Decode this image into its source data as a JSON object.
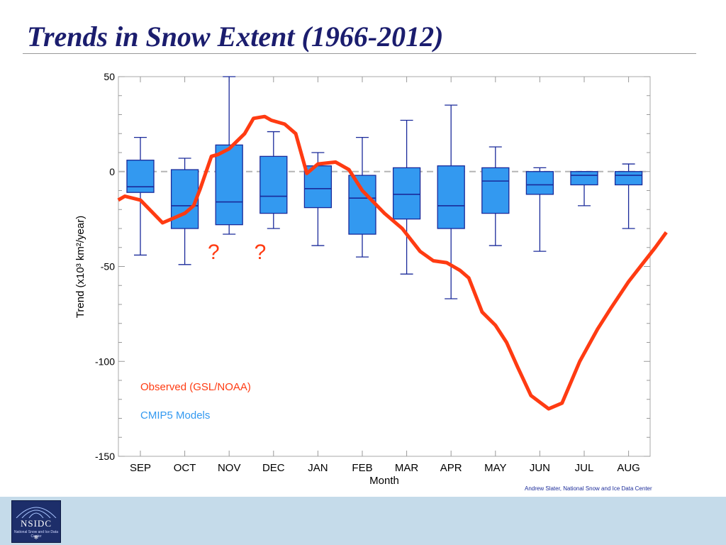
{
  "slide": {
    "title": "Trends in Snow Extent (1966-2012)",
    "credit": "Andrew Slater, National Snow and Ice Data Center",
    "logo_text": "NSIDC",
    "logo_subtext": "National Snow and Ice Data Center"
  },
  "chart_data": {
    "type": "box-and-line",
    "xlabel": "Month",
    "ylabel": "Trend (x10³ km²/year)",
    "ylim": [
      -150,
      50
    ],
    "yticks": [
      50,
      0,
      -50,
      -100,
      -150
    ],
    "categories": [
      "SEP",
      "OCT",
      "NOV",
      "DEC",
      "JAN",
      "FEB",
      "MAR",
      "APR",
      "MAY",
      "JUN",
      "JUL",
      "AUG"
    ],
    "reference_line": 0,
    "boxes": {
      "name": "CMIP5 Models",
      "color": "#3399f0",
      "data": [
        {
          "min": -44,
          "q1": -11,
          "median": -8,
          "q3": 6,
          "max": 18
        },
        {
          "min": -49,
          "q1": -30,
          "median": -18,
          "q3": 1,
          "max": 7
        },
        {
          "min": -33,
          "q1": -28,
          "median": -16,
          "q3": 14,
          "max": 50
        },
        {
          "min": -30,
          "q1": -22,
          "median": -13,
          "q3": 8,
          "max": 21
        },
        {
          "min": -39,
          "q1": -19,
          "median": -9,
          "q3": 3,
          "max": 10
        },
        {
          "min": -45,
          "q1": -33,
          "median": -14,
          "q3": -2,
          "max": 18
        },
        {
          "min": -54,
          "q1": -25,
          "median": -12,
          "q3": 2,
          "max": 27
        },
        {
          "min": -67,
          "q1": -30,
          "median": -18,
          "q3": 3,
          "max": 35
        },
        {
          "min": -39,
          "q1": -22,
          "median": -5,
          "q3": 2,
          "max": 13
        },
        {
          "min": -42,
          "q1": -12,
          "median": -7,
          "q3": 0,
          "max": 2
        },
        {
          "min": -18,
          "q1": -7,
          "median": -2,
          "q3": 0,
          "max": 0
        },
        {
          "min": -30,
          "q1": -7,
          "median": -2,
          "q3": 0,
          "max": 4
        }
      ]
    },
    "series": [
      {
        "name": "Observed (GSL/NOAA)",
        "color": "#ff3b12",
        "x": [
          -0.5,
          -0.35,
          0,
          0.5,
          1,
          1.2,
          1.35,
          1.6,
          1.75,
          2,
          2.35,
          2.55,
          2.8,
          2.95,
          3.25,
          3.5,
          3.75,
          4,
          4.4,
          4.7,
          5,
          5.5,
          5.9,
          6.3,
          6.6,
          6.9,
          7.2,
          7.4,
          7.7,
          8,
          8.25,
          8.5,
          8.8,
          9.2,
          9.5,
          9.9,
          10.3,
          10.6,
          11,
          11.3,
          11.6,
          11.85
        ],
        "y": [
          -15,
          -13,
          -15,
          -27,
          -22,
          -18,
          -9,
          8,
          9,
          12,
          20,
          28,
          29,
          27,
          25,
          20,
          -1,
          4,
          5,
          1,
          -10,
          -22,
          -30,
          -42,
          -47,
          -48,
          -52,
          -56,
          -74,
          -81,
          -90,
          -103,
          -118,
          -125,
          -122,
          -100,
          -83,
          -72,
          -58,
          -49,
          -40,
          -32
        ]
      }
    ],
    "legend": [
      {
        "label": "Observed (GSL/NOAA)",
        "color": "#ff3b12"
      },
      {
        "label": "CMIP5 Models",
        "color": "#3399f0"
      }
    ],
    "legend_position": "lower-left",
    "annotations": [
      {
        "text": "?",
        "x": 1.65,
        "y": -46,
        "color": "#ff3b12"
      },
      {
        "text": "?",
        "x": 2.7,
        "y": -46,
        "color": "#ff3b12"
      }
    ]
  }
}
